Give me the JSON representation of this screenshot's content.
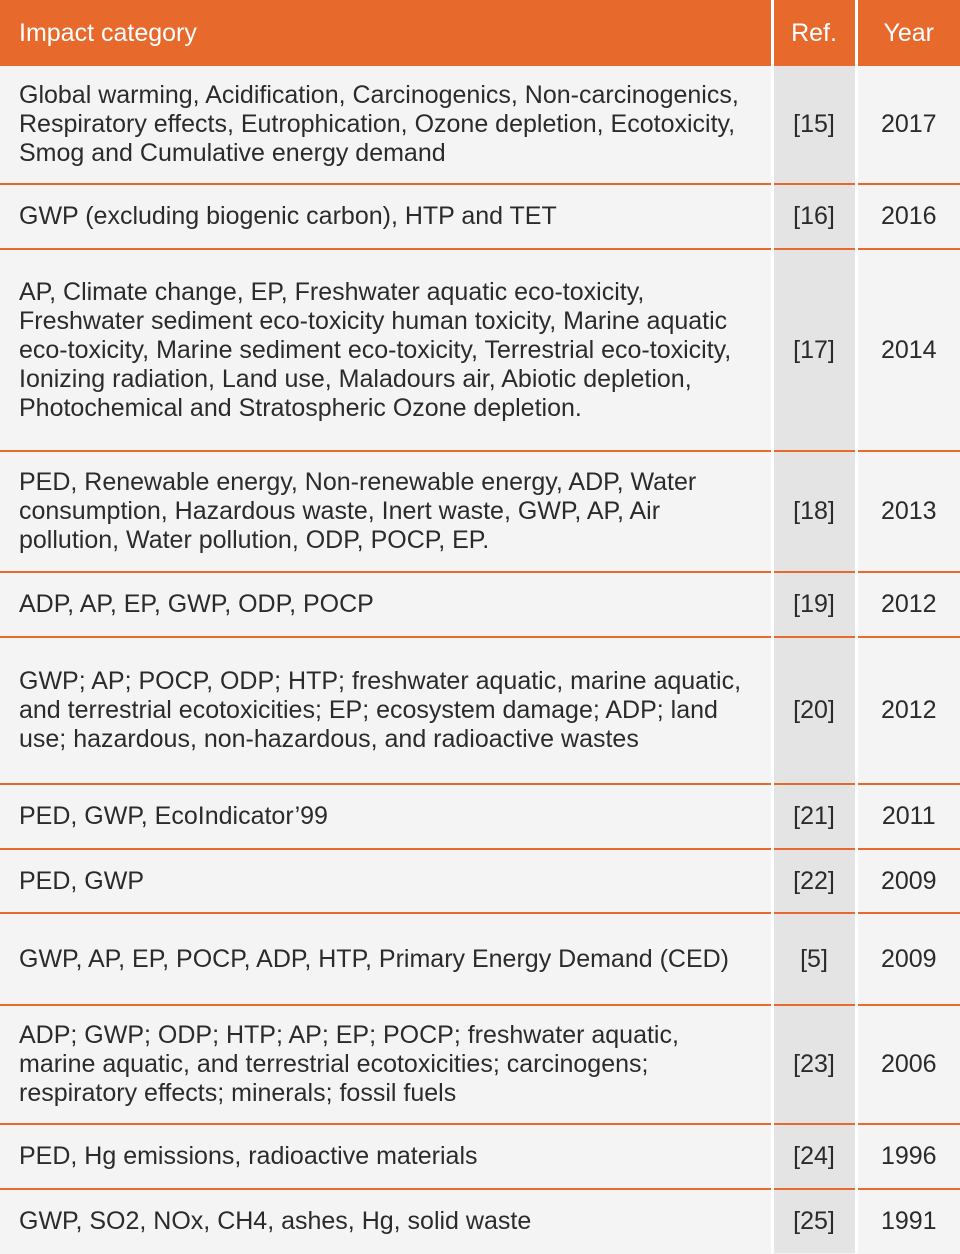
{
  "header": {
    "impact": "Impact category",
    "ref": "Ref.",
    "year": "Year"
  },
  "rows": [
    {
      "impact": "Global warming, Acidification, Carcinogenics, Non-carcinogenics, Respiratory effects, Eutrophication, Ozone depletion, Ecotoxicity, Smog and Cumulative energy demand",
      "ref": "[15]",
      "year": "2017"
    },
    {
      "impact": "GWP (excluding biogenic carbon), HTP and TET",
      "ref": "[16]",
      "year": "2016"
    },
    {
      "impact": "AP, Climate change, EP, Freshwater aquatic eco-toxicity, Freshwater sediment eco-toxicity human toxicity, Marine aquatic eco-toxicity, Marine sediment eco-toxicity, Terrestrial eco-toxicity, Ionizing radiation, Land use, Maladours air, Abiotic depletion, Photochemical and Stratospheric Ozone depletion.",
      "ref": "[17]",
      "year": "2014"
    },
    {
      "impact": "PED, Renewable energy, Non-renewable energy, ADP, Water consumption, Hazardous waste, Inert waste, GWP, AP, Air pollution, Water pollution, ODP, POCP, EP.",
      "ref": "[18]",
      "year": "2013"
    },
    {
      "impact": "ADP, AP, EP, GWP, ODP, POCP",
      "ref": "[19]",
      "year": "2012"
    },
    {
      "impact": "GWP; AP; POCP, ODP; HTP; freshwater aquatic, marine aquatic, and terrestrial ecotoxicities; EP; ecosystem damage; ADP; land use; hazardous, non-hazardous, and radioactive wastes",
      "ref": "[20]",
      "year": "2012"
    },
    {
      "impact": "PED, GWP, EcoIndicator’99",
      "ref": "[21]",
      "year": "2011"
    },
    {
      "impact": "PED, GWP",
      "ref": "[22]",
      "year": "2009"
    },
    {
      "impact": "GWP, AP, EP, POCP, ADP, HTP, Primary Energy Demand (CED)",
      "ref": "[5]",
      "year": "2009"
    },
    {
      "impact": "ADP; GWP; ODP; HTP; AP; EP; POCP; freshwater aquatic, marine aquatic, and terrestrial ecotoxicities; carcinogens; respiratory effects; minerals; fossil fuels",
      "ref": "[23]",
      "year": "2006"
    },
    {
      "impact": "PED, Hg emissions, radioactive materials",
      "ref": "[24]",
      "year": "1996"
    },
    {
      "impact": "GWP, SO2, NOx, CH4, ashes, Hg, solid waste",
      "ref": "[25]",
      "year": "1991"
    }
  ]
}
